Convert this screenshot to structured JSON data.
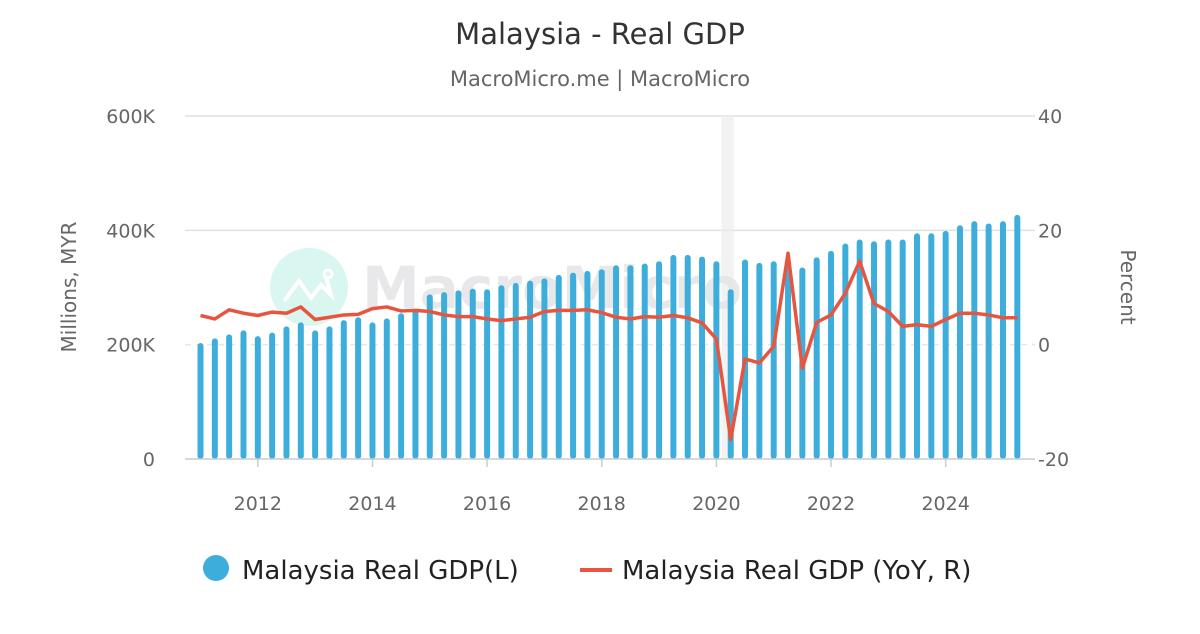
{
  "chart_data": {
    "type": "bar+line",
    "title": "Malaysia - Real GDP",
    "subtitle": "MacroMicro.me | MacroMicro",
    "watermark": "MacroMicro",
    "ylabel_left": "Millions, MYR",
    "ylabel_right": "Percent",
    "ylim_left": [
      0,
      600000
    ],
    "ylim_right": [
      -20,
      40
    ],
    "yticks_left": [
      {
        "v": 0,
        "label": "0"
      },
      {
        "v": 200000,
        "label": "200K"
      },
      {
        "v": 400000,
        "label": "400K"
      },
      {
        "v": 600000,
        "label": "600K"
      }
    ],
    "yticks_right": [
      {
        "v": -20,
        "label": "-20"
      },
      {
        "v": 0,
        "label": "0"
      },
      {
        "v": 20,
        "label": "20"
      },
      {
        "v": 40,
        "label": "40"
      }
    ],
    "xticks": [
      "2012",
      "2014",
      "2016",
      "2018",
      "2020",
      "2022",
      "2024"
    ],
    "grid": true,
    "legend_position": "bottom",
    "highlight_band": [
      "2020Q1",
      "2020Q2"
    ],
    "x": [
      "2011Q1",
      "2011Q2",
      "2011Q3",
      "2011Q4",
      "2012Q1",
      "2012Q2",
      "2012Q3",
      "2012Q4",
      "2013Q1",
      "2013Q2",
      "2013Q3",
      "2013Q4",
      "2014Q1",
      "2014Q2",
      "2014Q3",
      "2014Q4",
      "2015Q1",
      "2015Q2",
      "2015Q3",
      "2015Q4",
      "2016Q1",
      "2016Q2",
      "2016Q3",
      "2016Q4",
      "2017Q1",
      "2017Q2",
      "2017Q3",
      "2017Q4",
      "2018Q1",
      "2018Q2",
      "2018Q3",
      "2018Q4",
      "2019Q1",
      "2019Q2",
      "2019Q3",
      "2019Q4",
      "2020Q1",
      "2020Q2",
      "2020Q3",
      "2020Q4",
      "2021Q1",
      "2021Q2",
      "2021Q3",
      "2021Q4",
      "2022Q1",
      "2022Q2",
      "2022Q3",
      "2022Q4",
      "2023Q1",
      "2023Q2",
      "2023Q3",
      "2023Q4",
      "2024Q1",
      "2024Q2",
      "2024Q3",
      "2024Q4",
      "2025Q1",
      "2025Q2"
    ],
    "series": [
      {
        "name": "Malaysia Real GDP(L)",
        "type": "bar",
        "axis": "left",
        "color": "#3daedb",
        "values": [
          203000,
          211000,
          218000,
          225000,
          215000,
          221000,
          232000,
          239000,
          225000,
          232000,
          243000,
          248000,
          239000,
          246000,
          255000,
          263000,
          288000,
          292000,
          295000,
          298000,
          297000,
          304000,
          308000,
          312000,
          316000,
          322000,
          326000,
          329000,
          332000,
          339000,
          339000,
          342000,
          346000,
          357000,
          357000,
          354000,
          346000,
          297000,
          349000,
          343000,
          346000,
          340000,
          335000,
          353000,
          364000,
          377000,
          384000,
          381000,
          384000,
          384000,
          395000,
          395000,
          399000,
          409000,
          416000,
          412000,
          416000,
          427000
        ]
      },
      {
        "name": "Malaysia Real GDP (YoY, R)",
        "type": "line",
        "axis": "right",
        "color": "#e8553e",
        "values": [
          5.1,
          4.5,
          6.1,
          5.5,
          5.1,
          5.7,
          5.5,
          6.6,
          4.4,
          4.8,
          5.2,
          5.3,
          6.3,
          6.6,
          5.9,
          6.0,
          5.8,
          5.2,
          4.9,
          4.9,
          4.5,
          4.2,
          4.5,
          4.8,
          5.8,
          6.0,
          6.0,
          6.1,
          5.6,
          4.8,
          4.5,
          4.9,
          4.8,
          5.1,
          4.7,
          3.8,
          1.0,
          -16.6,
          -2.5,
          -3.2,
          -0.3,
          16.0,
          -4.1,
          3.9,
          5.2,
          9.0,
          14.6,
          7.2,
          5.8,
          3.2,
          3.5,
          3.2,
          4.4,
          5.5,
          5.5,
          5.2,
          4.7,
          4.7
        ]
      }
    ]
  }
}
